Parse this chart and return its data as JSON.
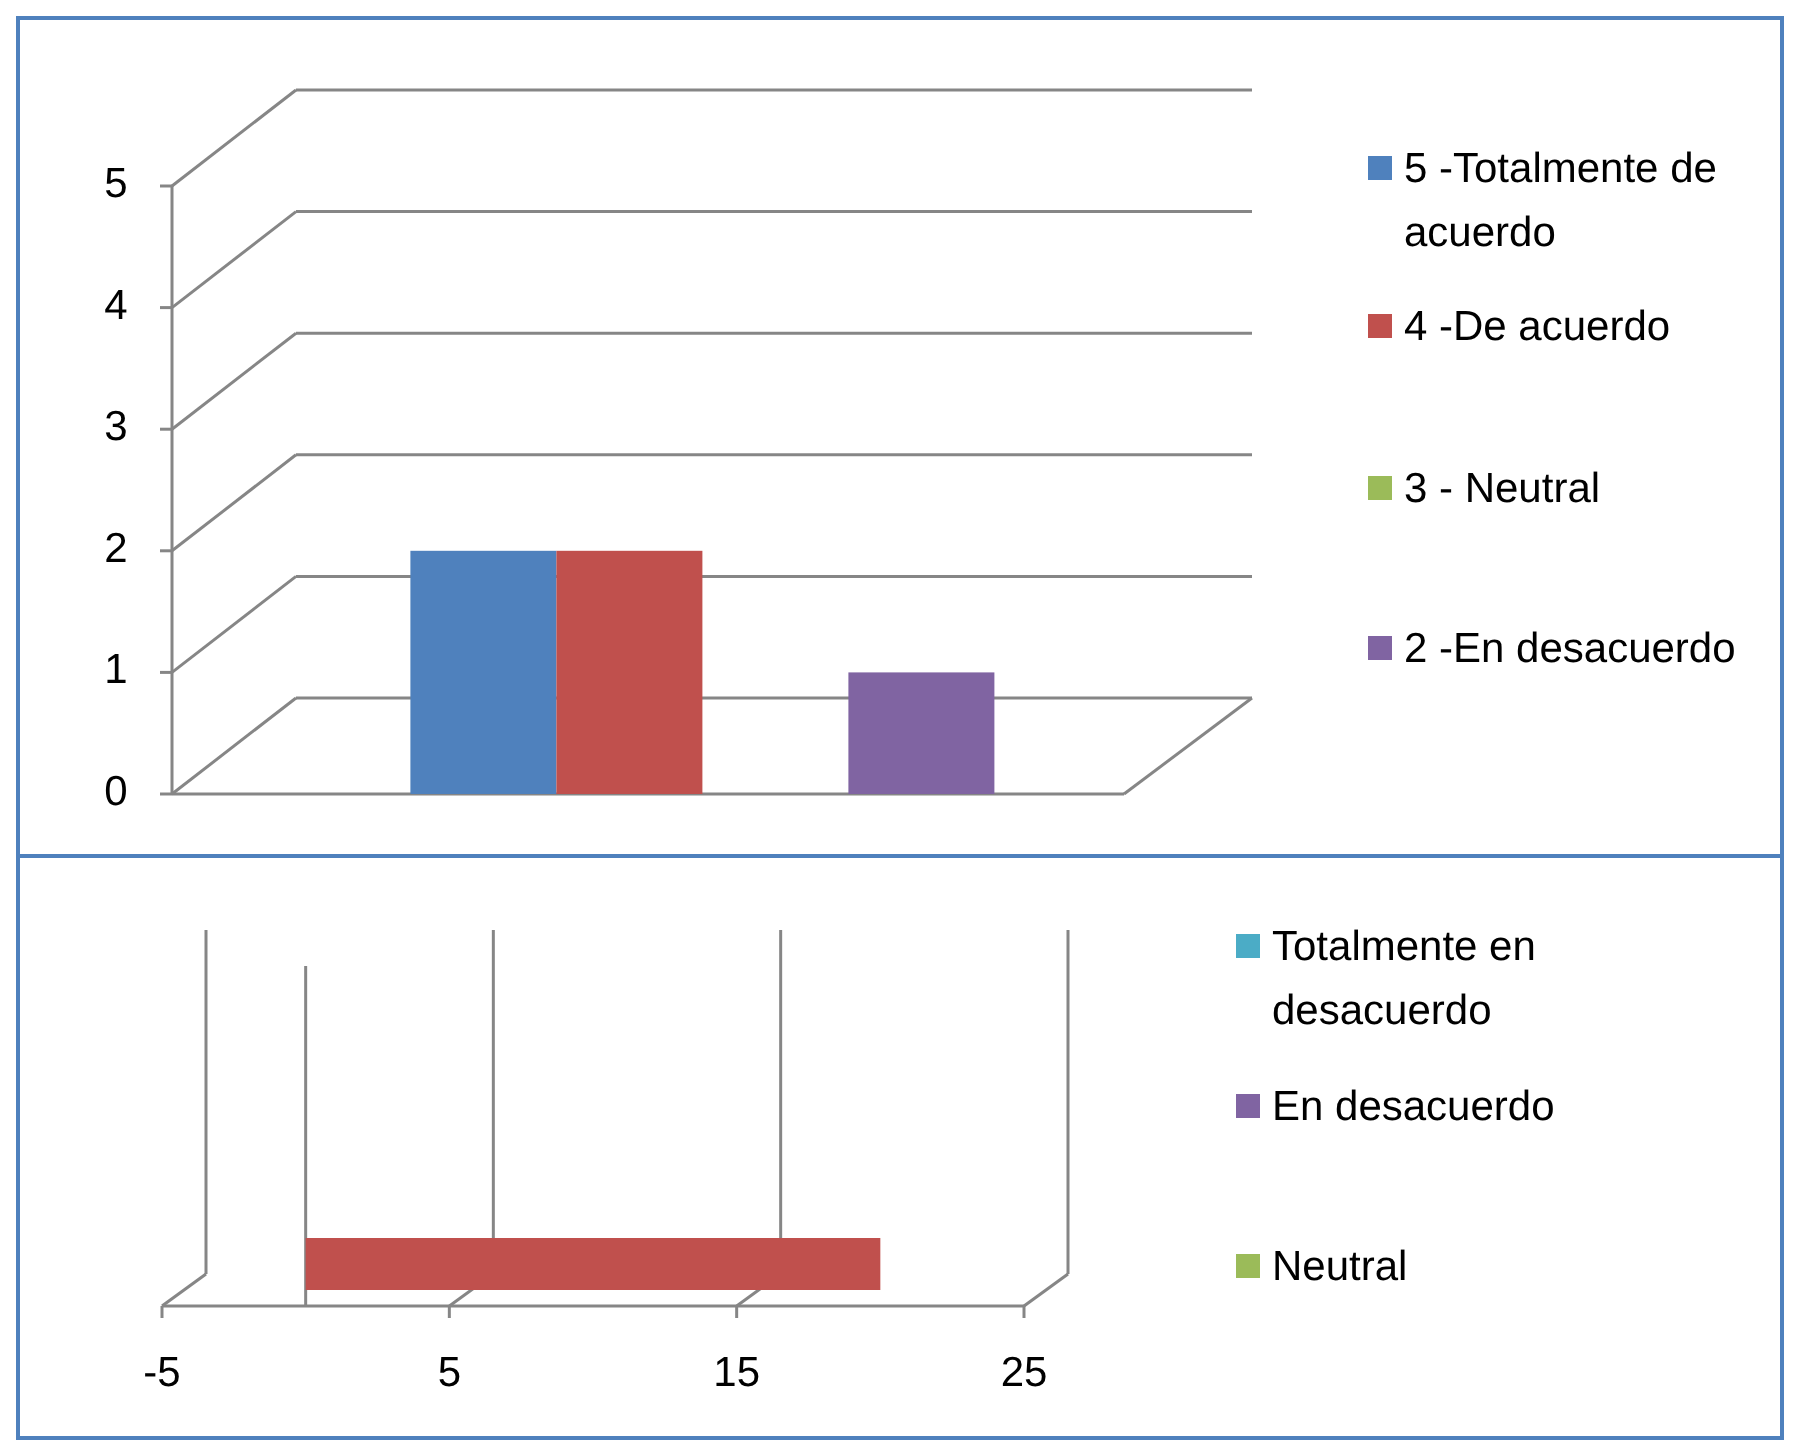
{
  "chart_data": [
    {
      "type": "bar",
      "categories": [
        null
      ],
      "ylim": [
        0,
        5
      ],
      "yticks": [
        0,
        1,
        2,
        3,
        4,
        5
      ],
      "grid": "y",
      "legend": "right",
      "tick_labels": "y",
      "series": [
        {
          "name": "5 -Totalmente de acuerdo",
          "color": "#4f81bd",
          "values": [
            2
          ]
        },
        {
          "name": "4 -De acuerdo",
          "color": "#c0504d",
          "values": [
            2
          ]
        },
        {
          "name": "3 - Neutral",
          "color": "#9bbb59",
          "values": [
            0
          ]
        },
        {
          "name": "2 -En desacuerdo",
          "color": "#8064a2",
          "values": [
            1
          ]
        }
      ]
    },
    {
      "type": "bar",
      "orientation": "horizontal",
      "categories": [
        null
      ],
      "xlim": [
        -5,
        25
      ],
      "xticks": [
        -5,
        5,
        15,
        25
      ],
      "grid": "x",
      "legend": "right",
      "tick_labels": "x",
      "series": [
        {
          "name": "Totalmente en desacuerdo",
          "color": "#4bacc6",
          "values": [
            0
          ]
        },
        {
          "name": "En desacuerdo",
          "color": "#8064a2",
          "values": [
            0
          ]
        },
        {
          "name": "Neutral",
          "color": "#9bbb59",
          "values": [
            0
          ]
        },
        {
          "color": "#c0504d",
          "values": [
            20
          ]
        }
      ]
    }
  ]
}
